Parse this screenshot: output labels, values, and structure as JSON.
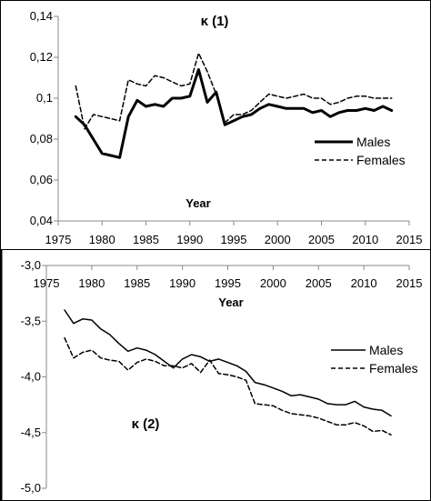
{
  "chart_data": [
    {
      "type": "line",
      "title": "κ (1)",
      "xlabel": "Year",
      "ylabel": "",
      "xlim": [
        1975,
        2015
      ],
      "ylim": [
        0.04,
        0.14
      ],
      "x_ticks": [
        1975,
        1980,
        1985,
        1990,
        1995,
        2000,
        2005,
        2010,
        2015
      ],
      "y_ticks": [
        0.04,
        0.06,
        0.08,
        0.1,
        0.12,
        0.14
      ],
      "y_tick_labels": [
        "0,04",
        "0,06",
        "0,08",
        "0,1",
        "0,12",
        "0,14"
      ],
      "legend": "center-right",
      "grid": false,
      "x": [
        1977,
        1978,
        1979,
        1980,
        1981,
        1982,
        1983,
        1984,
        1985,
        1986,
        1987,
        1988,
        1989,
        1990,
        1991,
        1992,
        1993,
        1994,
        1995,
        1996,
        1997,
        1998,
        1999,
        2000,
        2001,
        2002,
        2003,
        2004,
        2005,
        2006,
        2007,
        2008,
        2009,
        2010,
        2011,
        2012,
        2013
      ],
      "series": [
        {
          "name": "Males",
          "style": "solid",
          "values": [
            0.091,
            0.087,
            0.08,
            0.073,
            0.072,
            0.071,
            0.091,
            0.099,
            0.096,
            0.097,
            0.096,
            0.1,
            0.1,
            0.101,
            0.114,
            0.098,
            0.103,
            0.087,
            0.089,
            0.091,
            0.092,
            0.095,
            0.097,
            0.096,
            0.095,
            0.095,
            0.095,
            0.093,
            0.094,
            0.091,
            0.093,
            0.094,
            0.094,
            0.095,
            0.094,
            0.096,
            0.094
          ]
        },
        {
          "name": "Females",
          "style": "dashed",
          "values": [
            0.106,
            0.085,
            0.092,
            0.091,
            0.09,
            0.089,
            0.109,
            0.107,
            0.106,
            0.111,
            0.11,
            0.108,
            0.106,
            0.107,
            0.122,
            0.113,
            0.102,
            0.088,
            0.092,
            0.092,
            0.094,
            0.098,
            0.102,
            0.101,
            0.1,
            0.101,
            0.102,
            0.1,
            0.1,
            0.097,
            0.098,
            0.1,
            0.101,
            0.101,
            0.1,
            0.1,
            0.1
          ]
        }
      ]
    },
    {
      "type": "line",
      "title": "κ (2)",
      "xlabel": "Year",
      "ylabel": "",
      "xlim": [
        1975,
        2015
      ],
      "ylim": [
        -5.0,
        -3.0
      ],
      "x_ticks": [
        1975,
        1980,
        1985,
        1990,
        1995,
        2000,
        2005,
        2010,
        2015
      ],
      "y_ticks": [
        -3.0,
        -3.5,
        -4.0,
        -4.5,
        -5.0
      ],
      "y_tick_labels": [
        "-3,0",
        "-3,5",
        "-4,0",
        "-4,5",
        "-5,0"
      ],
      "legend": "right",
      "grid": false,
      "x": [
        1977,
        1978,
        1979,
        1980,
        1981,
        1982,
        1983,
        1984,
        1985,
        1986,
        1987,
        1988,
        1989,
        1990,
        1991,
        1992,
        1993,
        1994,
        1995,
        1996,
        1997,
        1998,
        1999,
        2000,
        2001,
        2002,
        2003,
        2004,
        2005,
        2006,
        2007,
        2008,
        2009,
        2010,
        2011,
        2012,
        2013
      ],
      "series": [
        {
          "name": "Males",
          "style": "solid",
          "values": [
            -3.4,
            -3.52,
            -3.48,
            -3.49,
            -3.57,
            -3.62,
            -3.7,
            -3.77,
            -3.74,
            -3.76,
            -3.8,
            -3.86,
            -3.92,
            -3.84,
            -3.8,
            -3.82,
            -3.86,
            -3.84,
            -3.87,
            -3.9,
            -3.95,
            -4.05,
            -4.07,
            -4.1,
            -4.13,
            -4.17,
            -4.16,
            -4.18,
            -4.2,
            -4.24,
            -4.25,
            -4.25,
            -4.22,
            -4.27,
            -4.29,
            -4.3,
            -4.35
          ]
        },
        {
          "name": "Females",
          "style": "dashed",
          "values": [
            -3.65,
            -3.83,
            -3.78,
            -3.76,
            -3.83,
            -3.85,
            -3.86,
            -3.94,
            -3.87,
            -3.84,
            -3.86,
            -3.9,
            -3.9,
            -3.92,
            -3.88,
            -3.96,
            -3.85,
            -3.97,
            -3.98,
            -4.0,
            -4.03,
            -4.24,
            -4.25,
            -4.26,
            -4.3,
            -4.33,
            -4.34,
            -4.35,
            -4.37,
            -4.4,
            -4.43,
            -4.43,
            -4.41,
            -4.44,
            -4.49,
            -4.48,
            -4.52
          ]
        }
      ]
    }
  ]
}
